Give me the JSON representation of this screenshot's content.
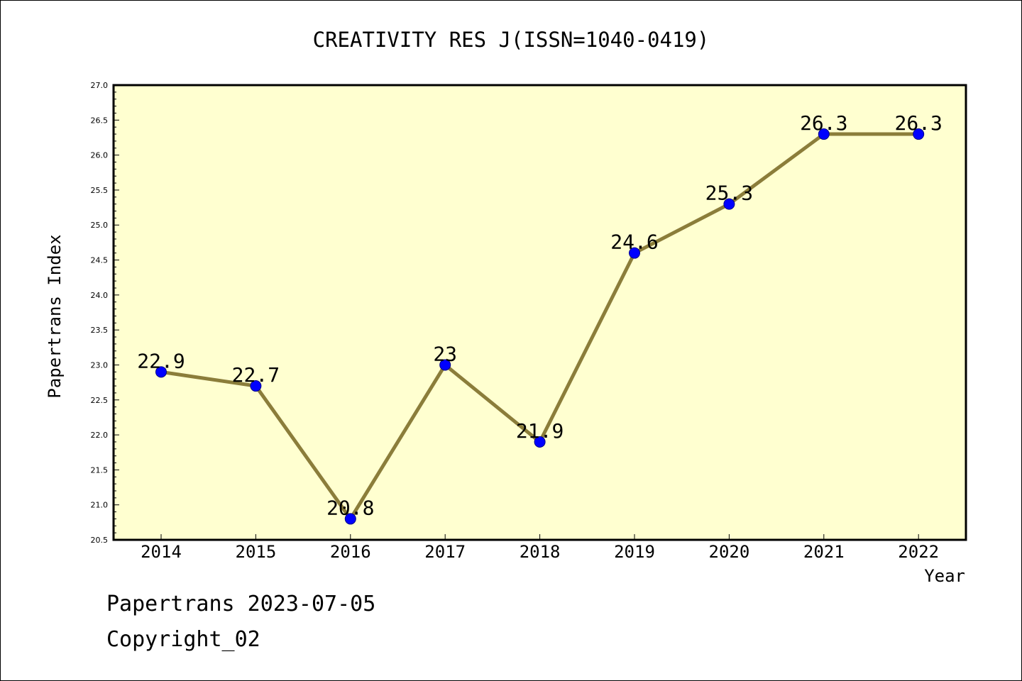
{
  "chart_data": {
    "type": "line",
    "title": "CREATIVITY RES J(ISSN=1040-0419)",
    "xlabel": "Year",
    "ylabel": "Papertrans Index",
    "categories": [
      "2014",
      "2015",
      "2016",
      "2017",
      "2018",
      "2019",
      "2020",
      "2021",
      "2022"
    ],
    "values": [
      22.9,
      22.7,
      20.8,
      23,
      21.9,
      24.6,
      25.3,
      26.3,
      26.3
    ],
    "data_labels": [
      "22.9",
      "22.7",
      "20.8",
      "23",
      "21.9",
      "24.6",
      "25.3",
      "26.3",
      "26.3"
    ],
    "ylim": [
      20.5,
      27.0
    ],
    "yticks": [
      "20.5",
      "21.0",
      "21.5",
      "22.0",
      "22.5",
      "23.0",
      "23.5",
      "24.0",
      "24.5",
      "25.0",
      "25.5",
      "26.0",
      "26.5",
      "27.0"
    ],
    "grid": false,
    "legend": "none",
    "colors": {
      "plot_background": "#ffffd0",
      "line": "#8b7d3a",
      "marker_fill": "#0000ff",
      "marker_stroke": "#00008b"
    }
  },
  "footer": {
    "line1": "Papertrans 2023-07-05",
    "line2": "Copyright_02"
  }
}
